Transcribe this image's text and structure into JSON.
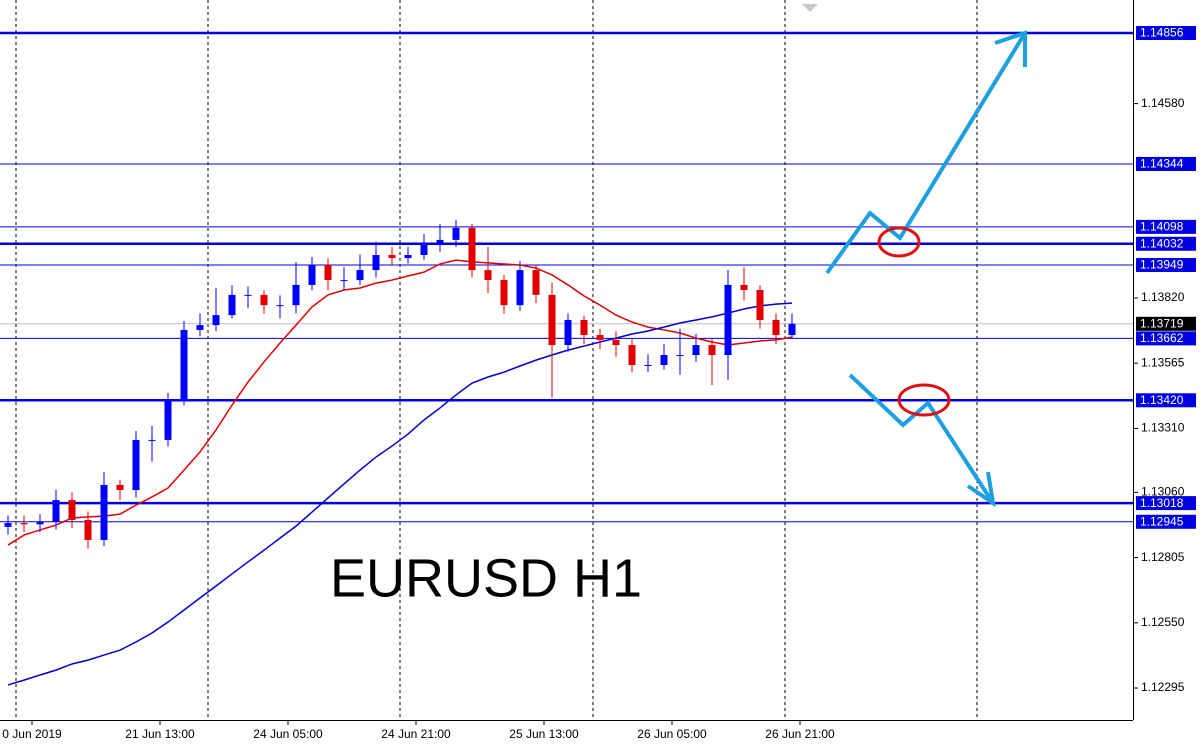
{
  "chart_data": {
    "type": "candlestick",
    "symbol_label": "EURUSD H1",
    "colors": {
      "up": "#0000ff",
      "down": "#e00000"
    },
    "open": [
      1.12925,
      1.1294,
      1.12935,
      1.12945,
      1.1303,
      1.12952,
      1.12874,
      1.13089,
      1.13069,
      1.13265,
      1.13265,
      1.13421,
      1.13695,
      1.13714,
      1.13753,
      1.13832,
      1.13832,
      1.13792,
      1.13792,
      1.13871,
      1.13949,
      1.1389,
      1.1389,
      1.13929,
      1.13988,
      1.13976,
      1.13988,
      1.14027,
      1.14047,
      1.14094,
      1.13929,
      1.1389,
      1.13792,
      1.13929,
      1.13832,
      1.13636,
      1.13734,
      1.13675,
      1.13656,
      1.13636,
      1.13558,
      1.13558,
      1.13597,
      1.13597,
      1.13636,
      1.13597,
      1.13871,
      1.13851,
      1.13734,
      1.13675
    ],
    "high": [
      1.1297,
      1.1297,
      1.12975,
      1.1307,
      1.1306,
      1.12985,
      1.1314,
      1.1311,
      1.133,
      1.1332,
      1.1345,
      1.1373,
      1.1376,
      1.1386,
      1.1387,
      1.13865,
      1.1385,
      1.1383,
      1.1396,
      1.1398,
      1.13975,
      1.1394,
      1.1399,
      1.1404,
      1.1402,
      1.1402,
      1.1407,
      1.1411,
      1.14125,
      1.1411,
      1.1402,
      1.1391,
      1.13965,
      1.1395,
      1.1388,
      1.1376,
      1.1375,
      1.137,
      1.1369,
      1.1366,
      1.136,
      1.1364,
      1.137,
      1.1368,
      1.1366,
      1.1393,
      1.1394,
      1.1387,
      1.1376,
      1.1376
    ],
    "low": [
      1.12895,
      1.12905,
      1.12905,
      1.12915,
      1.1292,
      1.1284,
      1.1285,
      1.1303,
      1.1304,
      1.1318,
      1.1324,
      1.134,
      1.1367,
      1.1369,
      1.1374,
      1.1378,
      1.1376,
      1.1374,
      1.1376,
      1.1385,
      1.1385,
      1.1385,
      1.1387,
      1.139,
      1.1395,
      1.13955,
      1.1397,
      1.14,
      1.1402,
      1.139,
      1.1384,
      1.1376,
      1.1377,
      1.138,
      1.1343,
      1.1361,
      1.1364,
      1.1362,
      1.1359,
      1.1353,
      1.1353,
      1.1354,
      1.1352,
      1.1357,
      1.1348,
      1.135,
      1.1381,
      1.137,
      1.1364,
      1.1366
    ],
    "close": [
      1.1294,
      1.12935,
      1.12945,
      1.1303,
      1.12952,
      1.12874,
      1.13089,
      1.13069,
      1.13265,
      1.13265,
      1.13421,
      1.13695,
      1.13714,
      1.13753,
      1.13832,
      1.13832,
      1.13792,
      1.13792,
      1.13871,
      1.13949,
      1.1389,
      1.1389,
      1.13929,
      1.13988,
      1.13976,
      1.13988,
      1.14027,
      1.14047,
      1.14094,
      1.13929,
      1.1389,
      1.13792,
      1.13929,
      1.13832,
      1.13636,
      1.13734,
      1.13675,
      1.13656,
      1.13636,
      1.13558,
      1.13558,
      1.13597,
      1.13597,
      1.13636,
      1.13597,
      1.13871,
      1.13851,
      1.13734,
      1.13675,
      1.13719
    ],
    "series": [
      {
        "color": "#e00000",
        "values": [
          1.12854,
          1.12893,
          1.12913,
          1.12932,
          1.1296,
          1.12964,
          1.12967,
          1.12975,
          1.1301,
          1.13042,
          1.13077,
          1.13147,
          1.13218,
          1.13304,
          1.13401,
          1.13491,
          1.1357,
          1.13644,
          1.13714,
          1.13785,
          1.13832,
          1.13851,
          1.13859,
          1.13878,
          1.1389,
          1.13906,
          1.13921,
          1.13953,
          1.13968,
          1.13961,
          1.13957,
          1.13953,
          1.13949,
          1.13937,
          1.1391,
          1.13871,
          1.13828,
          1.13792,
          1.13753,
          1.13726,
          1.13706,
          1.13695,
          1.13683,
          1.13663,
          1.13648,
          1.13636,
          1.13644,
          1.13652,
          1.13656,
          1.13667
        ]
      },
      {
        "color": "#0000cc",
        "values": [
          1.12307,
          1.12326,
          1.12346,
          1.12365,
          1.12389,
          1.12404,
          1.12424,
          1.12443,
          1.12475,
          1.1251,
          1.12553,
          1.126,
          1.12647,
          1.12694,
          1.12741,
          1.12788,
          1.12834,
          1.12881,
          1.12928,
          1.12983,
          1.13038,
          1.13093,
          1.13147,
          1.13198,
          1.13241,
          1.13288,
          1.13343,
          1.1339,
          1.13441,
          1.13487,
          1.13511,
          1.1353,
          1.13554,
          1.13577,
          1.13597,
          1.13616,
          1.13632,
          1.13648,
          1.13663,
          1.13679,
          1.13691,
          1.13706,
          1.13722,
          1.13734,
          1.13746,
          1.13761,
          1.13777,
          1.13789,
          1.13796,
          1.138
        ]
      }
    ],
    "ylim": [
      1.1217,
      1.14985
    ],
    "yticks": [
      {
        "value": 1.1458,
        "label": "1.14580"
      },
      {
        "value": 1.1382,
        "label": "1.13820"
      },
      1.13565,
      {
        "value": 1.1331,
        "label": "1.13310"
      },
      {
        "value": 1.1306,
        "label": "1.13060"
      },
      1.12805,
      {
        "value": 1.1255,
        "label": "1.12550"
      },
      1.12295
    ],
    "xticks": [
      {
        "value": 1.5,
        "label": "0 Jun 2019"
      },
      {
        "value": 9.5,
        "label": "21 Jun 13:00"
      },
      {
        "value": 17.5,
        "label": "24 Jun 05:00"
      },
      {
        "value": 25.5,
        "label": "24 Jun 21:00"
      },
      {
        "value": 33.5,
        "label": "25 Jun 13:00"
      },
      {
        "value": 41.5,
        "label": "26 Jun 05:00"
      },
      {
        "value": 49.5,
        "label": "26 Jun 21:00"
      }
    ],
    "level_color": "#0000e0",
    "levels": [
      {
        "value": 1.14856,
        "label": "1.14856",
        "thick": true
      },
      {
        "value": 1.14344,
        "label": "1.14344",
        "thick": false
      },
      {
        "value": 1.14098,
        "label": "1.14098",
        "thick": false
      },
      {
        "value": 1.14032,
        "label": "1.14032",
        "thick": true
      },
      {
        "value": 1.13949,
        "label": "1.13949",
        "thick": false
      },
      {
        "value": 1.13662,
        "label": "1.13662",
        "thick": false
      },
      {
        "value": 1.1342,
        "label": "1.13420",
        "thick": true
      },
      {
        "value": 1.13018,
        "label": "1.13018",
        "thick": true
      },
      {
        "value": 1.12945,
        "label": "1.12945",
        "thick": false
      }
    ],
    "current": {
      "value": 1.13719,
      "label": "1.13719",
      "color": "#000000",
      "line_color": "#c0c0c0"
    }
  }
}
